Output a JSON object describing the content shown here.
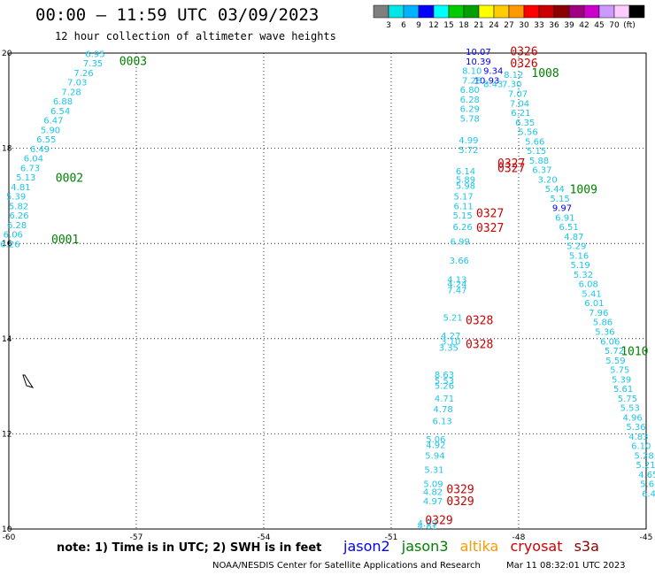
{
  "header": {
    "title": "00:00 — 11:59 UTC 03/09/2023",
    "subtitle": "12 hour collection of altimeter wave heights"
  },
  "colorbar": {
    "colors": [
      "#7f7f7f",
      "#00e5e5",
      "#00b2ff",
      "#0000ff",
      "#00ffff",
      "#00cc00",
      "#00a000",
      "#ffff00",
      "#ffcc00",
      "#ff9900",
      "#ff0000",
      "#cc0000",
      "#8b0000",
      "#a0007f",
      "#cc00cc",
      "#cc99ff",
      "#ffccff",
      "#000000"
    ],
    "labels": [
      "3",
      "6",
      "9",
      "12",
      "15",
      "18",
      "21",
      "24",
      "27",
      "30",
      "33",
      "36",
      "39",
      "42",
      "45",
      "70",
      "(ft)"
    ]
  },
  "footer": {
    "note": "note:  1) Time is in UTC;  2) SWH is in feet",
    "credit": "NOAA/NESDIS Center for Satellite Applications and Research",
    "timestamp": "Mar 11 08:32:01 UTC 2023"
  },
  "legend": [
    {
      "name": "jason2",
      "color": "#0000ff"
    },
    {
      "name": "jason3",
      "color": "#008000"
    },
    {
      "name": "altika",
      "color": "#ff9900"
    },
    {
      "name": "cryosat",
      "color": "#cc0000"
    },
    {
      "name": "s3a",
      "color": "#8b0000"
    }
  ],
  "chart_data": {
    "type": "scatter",
    "title": "00:00 — 11:59 UTC 03/09/2023",
    "subtitle": "12 hour collection of altimeter wave heights",
    "xlim": [
      -60,
      -45
    ],
    "ylim": [
      10,
      20
    ],
    "x_ticks": [
      -60,
      -57,
      -54,
      -51,
      -48,
      -45
    ],
    "y_ticks": [
      10,
      12,
      14,
      16,
      18,
      20
    ],
    "x_tick_labels": [
      "-60",
      "-57",
      "-54",
      "-51",
      "-48",
      "-45"
    ],
    "y_tick_labels": [
      "10",
      "12",
      "14",
      "16",
      "18",
      "20"
    ],
    "grid": "dotted",
    "series": [
      {
        "name": "jason3",
        "color": "#008000",
        "time_labels": [
          {
            "x": -57.4,
            "y": 19.75,
            "label": "0003"
          },
          {
            "x": -58.9,
            "y": 17.3,
            "label": "0002"
          },
          {
            "x": -59.0,
            "y": 16.0,
            "label": "0001"
          },
          {
            "x": -47.7,
            "y": 19.5,
            "label": "1008"
          },
          {
            "x": -46.8,
            "y": 17.05,
            "label": "1009"
          },
          {
            "x": -45.6,
            "y": 13.65,
            "label": "1010"
          }
        ],
        "points": [
          {
            "x": -57.97,
            "y": 19.92,
            "value": "6.95"
          },
          {
            "x": -58.02,
            "y": 19.72,
            "value": "7.35"
          },
          {
            "x": -58.24,
            "y": 19.52,
            "value": "7.26"
          },
          {
            "x": -58.39,
            "y": 19.32,
            "value": "7.03"
          },
          {
            "x": -58.53,
            "y": 19.12,
            "value": "7.28"
          },
          {
            "x": -58.73,
            "y": 18.92,
            "value": "6.88"
          },
          {
            "x": -58.79,
            "y": 18.72,
            "value": "6.54"
          },
          {
            "x": -58.95,
            "y": 18.52,
            "value": "6.47"
          },
          {
            "x": -59.02,
            "y": 18.32,
            "value": "5.90"
          },
          {
            "x": -59.12,
            "y": 18.12,
            "value": "6.55"
          },
          {
            "x": -59.27,
            "y": 17.92,
            "value": "6.49"
          },
          {
            "x": -59.42,
            "y": 17.72,
            "value": "6.04"
          },
          {
            "x": -59.5,
            "y": 17.52,
            "value": "6.73"
          },
          {
            "x": -59.6,
            "y": 17.32,
            "value": "5.13"
          },
          {
            "x": -59.72,
            "y": 17.12,
            "value": "4.81"
          },
          {
            "x": -59.83,
            "y": 16.92,
            "value": "5.39"
          },
          {
            "x": -59.77,
            "y": 16.72,
            "value": "5.82"
          },
          {
            "x": -59.76,
            "y": 16.52,
            "value": "6.26"
          },
          {
            "x": -59.81,
            "y": 16.32,
            "value": "6.28"
          },
          {
            "x": -59.9,
            "y": 16.12,
            "value": "6.06"
          },
          {
            "x": -59.97,
            "y": 15.92,
            "value": "6.26"
          },
          {
            "x": -48.12,
            "y": 19.48,
            "value": "8.12"
          },
          {
            "x": -48.16,
            "y": 19.28,
            "value": "7.30"
          },
          {
            "x": -48.02,
            "y": 19.08,
            "value": "7.07"
          },
          {
            "x": -47.98,
            "y": 18.88,
            "value": "7.04"
          },
          {
            "x": -47.95,
            "y": 18.68,
            "value": "6.21"
          },
          {
            "x": -47.85,
            "y": 18.48,
            "value": "6.35"
          },
          {
            "x": -47.78,
            "y": 18.28,
            "value": "5.56"
          },
          {
            "x": -47.62,
            "y": 18.08,
            "value": "5.66"
          },
          {
            "x": -47.58,
            "y": 17.88,
            "value": "5.15"
          },
          {
            "x": -47.52,
            "y": 17.68,
            "value": "5.88"
          },
          {
            "x": -47.45,
            "y": 17.48,
            "value": "6.37"
          },
          {
            "x": -47.32,
            "y": 17.28,
            "value": "3.20"
          },
          {
            "x": -47.15,
            "y": 17.08,
            "value": "5.44"
          },
          {
            "x": -47.03,
            "y": 16.88,
            "value": "5.15"
          },
          {
            "x": -46.91,
            "y": 16.48,
            "value": "6.91"
          },
          {
            "x": -46.82,
            "y": 16.28,
            "value": "6.51"
          },
          {
            "x": -46.7,
            "y": 16.08,
            "value": "4.87"
          },
          {
            "x": -46.64,
            "y": 15.88,
            "value": "5.29"
          },
          {
            "x": -46.58,
            "y": 15.68,
            "value": "5.16"
          },
          {
            "x": -46.55,
            "y": 15.48,
            "value": "5.19"
          },
          {
            "x": -46.48,
            "y": 15.28,
            "value": "5.32"
          },
          {
            "x": -46.36,
            "y": 15.08,
            "value": "6.08"
          },
          {
            "x": -46.28,
            "y": 14.88,
            "value": "5.41"
          },
          {
            "x": -46.22,
            "y": 14.68,
            "value": "6.01"
          },
          {
            "x": -46.12,
            "y": 14.48,
            "value": "7.96"
          },
          {
            "x": -46.02,
            "y": 14.28,
            "value": "5.86"
          },
          {
            "x": -45.97,
            "y": 14.08,
            "value": "5.36"
          },
          {
            "x": -45.85,
            "y": 13.88,
            "value": "6.06"
          },
          {
            "x": -45.75,
            "y": 13.68,
            "value": "5.72"
          },
          {
            "x": -45.72,
            "y": 13.48,
            "value": "5.59"
          },
          {
            "x": -45.62,
            "y": 13.28,
            "value": "5.75"
          },
          {
            "x": -45.58,
            "y": 13.08,
            "value": "5.39"
          },
          {
            "x": -45.54,
            "y": 12.88,
            "value": "5.61"
          },
          {
            "x": -45.44,
            "y": 12.68,
            "value": "5.75"
          },
          {
            "x": -45.38,
            "y": 12.48,
            "value": "5.53"
          },
          {
            "x": -45.32,
            "y": 12.28,
            "value": "4.96"
          },
          {
            "x": -45.24,
            "y": 12.08,
            "value": "5.36"
          },
          {
            "x": -45.18,
            "y": 11.88,
            "value": "4.83"
          },
          {
            "x": -45.12,
            "y": 11.68,
            "value": "6.10"
          },
          {
            "x": -45.05,
            "y": 11.48,
            "value": "5.28"
          },
          {
            "x": -45.01,
            "y": 11.28,
            "value": "5.21"
          },
          {
            "x": -44.95,
            "y": 11.08,
            "value": "4.65"
          },
          {
            "x": -44.91,
            "y": 10.88,
            "value": "5.66"
          },
          {
            "x": -44.87,
            "y": 10.68,
            "value": "6.41"
          }
        ]
      },
      {
        "name": "jason2",
        "color": "#0000ff",
        "points": [
          {
            "x": -48.95,
            "y": 19.96,
            "value": "10.07"
          },
          {
            "x": -48.95,
            "y": 19.76,
            "value": "10.39"
          },
          {
            "x": -48.6,
            "y": 19.56,
            "value": "9.34"
          },
          {
            "x": -48.75,
            "y": 19.36,
            "value": "10.93"
          },
          {
            "x": -46.98,
            "y": 16.68,
            "value": "9.97"
          }
        ]
      },
      {
        "name": "cryosat",
        "color": "#cc0000",
        "time_labels": [
          {
            "x": -48.2,
            "y": 19.95,
            "label": "0326"
          },
          {
            "x": -48.2,
            "y": 19.7,
            "label": "0326"
          },
          {
            "x": -48.5,
            "y": 17.6,
            "label": "0327"
          },
          {
            "x": -48.5,
            "y": 17.5,
            "label": "0327"
          },
          {
            "x": -49.0,
            "y": 16.55,
            "label": "0327"
          },
          {
            "x": -49.0,
            "y": 16.25,
            "label": "0327"
          },
          {
            "x": -49.25,
            "y": 14.3,
            "label": "0328"
          },
          {
            "x": -49.25,
            "y": 13.8,
            "label": "0328"
          },
          {
            "x": -49.7,
            "y": 10.75,
            "label": "0329"
          },
          {
            "x": -49.7,
            "y": 10.5,
            "label": "0329"
          },
          {
            "x": -50.2,
            "y": 10.1,
            "label": "0329"
          }
        ],
        "points": [
          {
            "x": -49.1,
            "y": 19.56,
            "value": "8.10"
          },
          {
            "x": -49.1,
            "y": 19.36,
            "value": "7.28"
          },
          {
            "x": -48.6,
            "y": 19.28,
            "value": "8.43"
          },
          {
            "x": -49.15,
            "y": 19.16,
            "value": "6.80"
          },
          {
            "x": -49.15,
            "y": 18.96,
            "value": "6.28"
          },
          {
            "x": -49.15,
            "y": 18.76,
            "value": "6.29"
          },
          {
            "x": -49.15,
            "y": 18.56,
            "value": "5.78"
          },
          {
            "x": -49.18,
            "y": 18.1,
            "value": "4.99"
          },
          {
            "x": -49.18,
            "y": 17.9,
            "value": "5.72"
          },
          {
            "x": -49.25,
            "y": 17.45,
            "value": "6.14"
          },
          {
            "x": -49.25,
            "y": 17.28,
            "value": "5.89"
          },
          {
            "x": -49.25,
            "y": 17.15,
            "value": "5.98"
          },
          {
            "x": -49.3,
            "y": 16.92,
            "value": "5.17"
          },
          {
            "x": -49.3,
            "y": 16.72,
            "value": "6.11"
          },
          {
            "x": -49.32,
            "y": 16.52,
            "value": "5.15"
          },
          {
            "x": -49.32,
            "y": 16.28,
            "value": "6.26"
          },
          {
            "x": -49.38,
            "y": 15.98,
            "value": "6.99"
          },
          {
            "x": -49.4,
            "y": 15.58,
            "value": "3.66"
          },
          {
            "x": -49.45,
            "y": 15.18,
            "value": "4.13"
          },
          {
            "x": -49.45,
            "y": 15.08,
            "value": "4.24"
          },
          {
            "x": -49.45,
            "y": 14.95,
            "value": "7.47"
          },
          {
            "x": -49.55,
            "y": 14.38,
            "value": "5.21"
          },
          {
            "x": -49.6,
            "y": 14.0,
            "value": "4.27"
          },
          {
            "x": -49.6,
            "y": 13.88,
            "value": "3.10"
          },
          {
            "x": -49.65,
            "y": 13.75,
            "value": "3.35"
          },
          {
            "x": -49.75,
            "y": 13.18,
            "value": "8.63"
          },
          {
            "x": -49.75,
            "y": 13.05,
            "value": "5.53"
          },
          {
            "x": -49.75,
            "y": 12.95,
            "value": "5.26"
          },
          {
            "x": -49.75,
            "y": 12.68,
            "value": "4.71"
          },
          {
            "x": -49.78,
            "y": 12.45,
            "value": "4.78"
          },
          {
            "x": -49.8,
            "y": 12.2,
            "value": "6.13"
          },
          {
            "x": -49.95,
            "y": 11.82,
            "value": "5.06"
          },
          {
            "x": -49.95,
            "y": 11.7,
            "value": "4.92"
          },
          {
            "x": -49.97,
            "y": 11.48,
            "value": "5.94"
          },
          {
            "x": -49.99,
            "y": 11.18,
            "value": "5.31"
          },
          {
            "x": -50.01,
            "y": 10.88,
            "value": "5.09"
          },
          {
            "x": -50.02,
            "y": 10.72,
            "value": "4.82"
          },
          {
            "x": -50.02,
            "y": 10.52,
            "value": "4.97"
          },
          {
            "x": -50.15,
            "y": 10.06,
            "value": "4.79"
          },
          {
            "x": -50.15,
            "y": 10.0,
            "value": "4.81"
          }
        ]
      }
    ]
  }
}
